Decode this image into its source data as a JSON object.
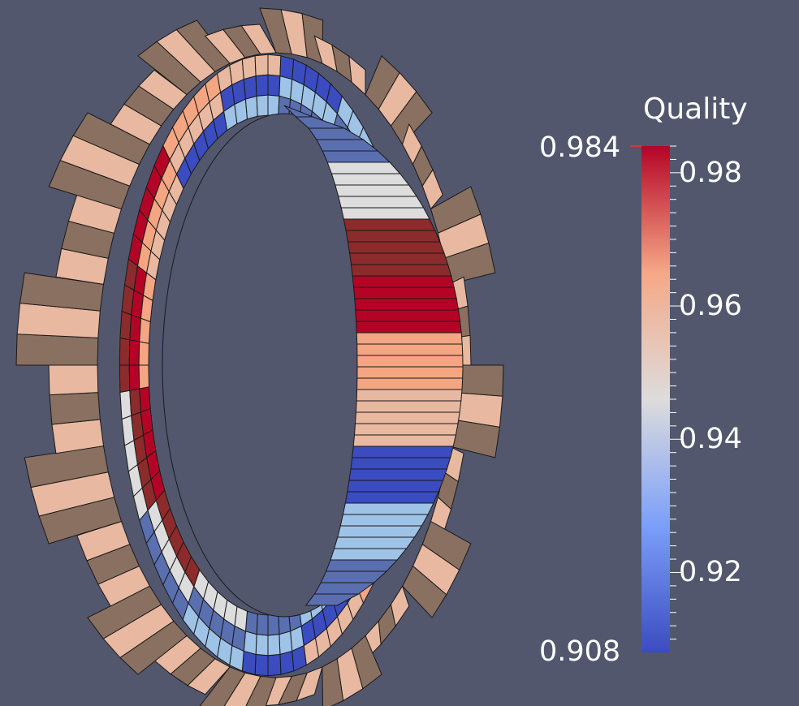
{
  "scalar_bar": {
    "title": "Quality",
    "range_max": "0.984",
    "range_min": "0.908",
    "ticks": [
      "0.98",
      "0.96",
      "0.94",
      "0.92"
    ],
    "tick_values": [
      0.98,
      0.96,
      0.94,
      0.92
    ],
    "min_value": 0.908,
    "max_value": 0.984
  },
  "colors": {
    "background": "#52576e",
    "low": "#3b4cc0",
    "mid": "#dddddd",
    "high": "#b40426"
  },
  "mesh": {
    "object": "gear-ring",
    "face_colors": [
      "#b40426",
      "#3b4cc0",
      "#dddddd",
      "#f4a582",
      "#9ec3e7",
      "#8c2b2b",
      "#e8b8a0",
      "#5a6fb0"
    ]
  }
}
